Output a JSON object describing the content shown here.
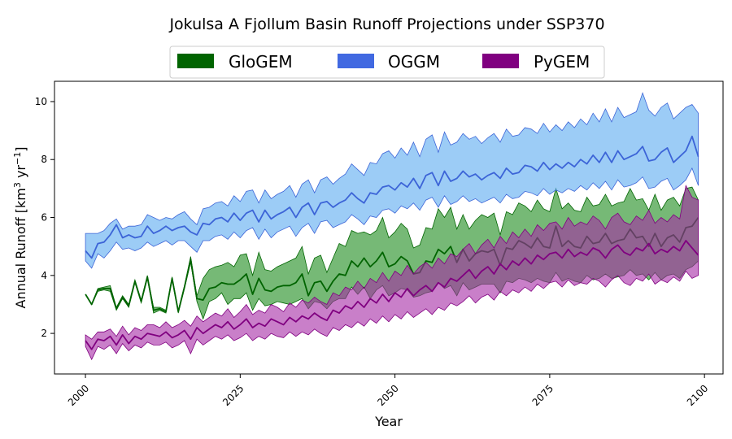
{
  "chart_data": {
    "type": "area",
    "title": "Jokulsa A Fjollum Basin Runoff Projections under SSP370",
    "xlabel": "Year",
    "ylabel_main": "Annual Runoff [km",
    "ylabel_sup1": "3",
    "ylabel_mid": " yr",
    "ylabel_sup2": "−1",
    "ylabel_end": "]",
    "xlim": [
      1995,
      2103
    ],
    "ylim": [
      0.6,
      10.7
    ],
    "xticks": [
      2000,
      2025,
      2050,
      2075,
      2100
    ],
    "yticks": [
      2,
      4,
      6,
      8,
      10
    ],
    "legend_position": "top-center",
    "grid": false,
    "series": [
      {
        "name": "GloGEM",
        "fill_color": "#1b8a1b",
        "line_color": "#006400",
        "legend_color": "#006400",
        "x_start": 2000,
        "mean": [
          3.35,
          3.0,
          3.5,
          3.55,
          3.55,
          2.85,
          3.25,
          2.95,
          3.8,
          3.1,
          3.95,
          2.8,
          2.85,
          2.75,
          3.9,
          2.75,
          3.6,
          4.55,
          3.2,
          3.15,
          3.55,
          3.6,
          3.75,
          3.7,
          3.7,
          3.85,
          4.05,
          3.35,
          3.9,
          3.5,
          3.45,
          3.6,
          3.65,
          3.65,
          3.75,
          4.05,
          3.3,
          3.75,
          3.8,
          3.45,
          3.8,
          4.05,
          4.0,
          4.5,
          4.3,
          4.6,
          4.3,
          4.5,
          4.8,
          4.3,
          4.4,
          4.65,
          4.5,
          4.05,
          4.1,
          4.5,
          4.45,
          4.9,
          4.75,
          5.0,
          4.45,
          4.9,
          4.5,
          4.75,
          4.85,
          4.8,
          4.9,
          4.35,
          4.95,
          4.9,
          5.2,
          5.1,
          4.95,
          5.3,
          5.0,
          4.95,
          5.7,
          5.0,
          5.2,
          5.0,
          4.95,
          5.35,
          5.1,
          5.15,
          5.45,
          5.1,
          5.2,
          5.25,
          5.6,
          5.3,
          5.35,
          5.0,
          5.45,
          5.0,
          5.3,
          5.4,
          5.15,
          5.65,
          5.7,
          6.0
        ],
        "lower": [
          3.35,
          3.0,
          3.45,
          3.5,
          3.45,
          2.8,
          3.2,
          2.9,
          3.75,
          3.05,
          3.9,
          2.7,
          2.8,
          2.7,
          3.85,
          2.7,
          3.55,
          4.45,
          3.1,
          2.5,
          3.1,
          3.2,
          3.4,
          3.0,
          3.2,
          3.2,
          3.4,
          2.8,
          3.2,
          2.95,
          3.0,
          3.1,
          3.05,
          3.0,
          3.1,
          3.2,
          2.85,
          3.1,
          3.05,
          2.85,
          3.1,
          3.2,
          3.2,
          3.6,
          3.35,
          3.6,
          3.2,
          3.5,
          3.65,
          3.3,
          3.4,
          3.55,
          3.5,
          3.25,
          3.3,
          3.4,
          3.45,
          3.75,
          3.55,
          3.65,
          3.3,
          3.75,
          3.5,
          3.6,
          3.7,
          3.7,
          3.7,
          3.4,
          3.8,
          3.75,
          3.9,
          3.85,
          3.75,
          3.9,
          3.8,
          3.75,
          4.1,
          3.8,
          3.9,
          3.8,
          3.75,
          4.0,
          3.85,
          3.9,
          4.05,
          3.9,
          3.95,
          4.0,
          4.2,
          4.0,
          4.05,
          3.85,
          4.1,
          3.85,
          4.0,
          4.05,
          3.9,
          4.2,
          4.3,
          4.5
        ],
        "upper": [
          3.35,
          3.0,
          3.55,
          3.6,
          3.65,
          2.9,
          3.3,
          3.0,
          3.85,
          3.15,
          4.0,
          2.9,
          2.9,
          2.8,
          3.95,
          2.8,
          3.65,
          4.65,
          3.3,
          3.9,
          4.2,
          4.3,
          4.35,
          4.45,
          4.3,
          4.7,
          4.75,
          4.0,
          4.8,
          4.2,
          4.15,
          4.3,
          4.4,
          4.5,
          4.6,
          5.0,
          4.05,
          4.6,
          4.7,
          4.1,
          4.6,
          5.1,
          5.0,
          5.55,
          5.45,
          5.5,
          5.4,
          5.55,
          6.0,
          5.3,
          5.5,
          5.8,
          5.6,
          4.95,
          5.05,
          5.65,
          5.6,
          6.3,
          6.0,
          6.35,
          5.6,
          6.1,
          5.6,
          5.9,
          6.1,
          6.0,
          6.15,
          5.4,
          6.2,
          6.1,
          6.5,
          6.4,
          6.2,
          6.6,
          6.3,
          6.2,
          7.0,
          6.3,
          6.5,
          6.25,
          6.2,
          6.7,
          6.4,
          6.45,
          6.8,
          6.4,
          6.5,
          6.55,
          7.0,
          6.6,
          6.65,
          6.25,
          6.8,
          6.25,
          6.6,
          6.7,
          6.4,
          7.0,
          7.05,
          6.6
        ]
      },
      {
        "name": "OGGM",
        "fill_color": "#5aaaf0",
        "line_color": "#3c64d7",
        "legend_color": "#4169e1",
        "x_start": 2000,
        "mean": [
          4.85,
          4.6,
          5.1,
          5.15,
          5.4,
          5.75,
          5.3,
          5.4,
          5.3,
          5.35,
          5.7,
          5.45,
          5.55,
          5.7,
          5.55,
          5.65,
          5.7,
          5.5,
          5.4,
          5.8,
          5.75,
          5.95,
          6.0,
          5.85,
          6.15,
          5.9,
          6.15,
          6.25,
          5.85,
          6.25,
          5.95,
          6.1,
          6.2,
          6.35,
          6.0,
          6.35,
          6.5,
          6.1,
          6.5,
          6.55,
          6.35,
          6.5,
          6.6,
          6.85,
          6.65,
          6.5,
          6.85,
          6.8,
          7.05,
          7.1,
          6.95,
          7.2,
          7.05,
          7.35,
          7.0,
          7.45,
          7.55,
          7.1,
          7.6,
          7.25,
          7.35,
          7.6,
          7.4,
          7.5,
          7.3,
          7.45,
          7.55,
          7.35,
          7.7,
          7.5,
          7.55,
          7.8,
          7.75,
          7.6,
          7.9,
          7.65,
          7.85,
          7.7,
          7.9,
          7.75,
          8.0,
          7.85,
          8.15,
          7.9,
          8.25,
          7.9,
          8.3,
          8.0,
          8.1,
          8.2,
          8.45,
          7.95,
          8.0,
          8.25,
          8.4,
          7.9,
          8.1,
          8.3,
          8.8,
          8.1
        ],
        "lower": [
          4.5,
          4.25,
          4.75,
          4.6,
          4.85,
          5.15,
          4.9,
          4.95,
          4.85,
          4.95,
          5.15,
          5.0,
          5.1,
          5.2,
          5.05,
          5.2,
          5.2,
          5.0,
          4.8,
          5.2,
          5.2,
          5.35,
          5.4,
          5.25,
          5.5,
          5.3,
          5.55,
          5.65,
          5.25,
          5.6,
          5.3,
          5.5,
          5.6,
          5.7,
          5.35,
          5.65,
          5.8,
          5.45,
          5.85,
          5.9,
          5.65,
          5.75,
          5.85,
          6.1,
          5.95,
          5.75,
          6.05,
          6.0,
          6.25,
          6.3,
          6.15,
          6.4,
          6.3,
          6.5,
          6.25,
          6.6,
          6.7,
          6.35,
          6.75,
          6.45,
          6.55,
          6.75,
          6.55,
          6.65,
          6.5,
          6.6,
          6.7,
          6.5,
          6.8,
          6.65,
          6.7,
          6.9,
          6.85,
          6.75,
          7.0,
          6.8,
          6.95,
          6.85,
          7.0,
          6.9,
          7.1,
          6.95,
          7.2,
          7.0,
          7.25,
          6.95,
          7.3,
          7.05,
          7.1,
          7.2,
          7.4,
          7.0,
          7.05,
          7.25,
          7.35,
          6.95,
          7.1,
          7.3,
          7.7,
          7.1
        ],
        "upper": [
          5.45,
          5.45,
          5.45,
          5.55,
          5.8,
          5.95,
          5.6,
          5.7,
          5.7,
          5.75,
          6.1,
          6.0,
          5.9,
          6.0,
          5.95,
          6.1,
          6.2,
          5.95,
          5.75,
          6.3,
          6.35,
          6.5,
          6.55,
          6.4,
          6.75,
          6.55,
          6.9,
          6.95,
          6.5,
          6.95,
          6.65,
          6.8,
          6.9,
          7.1,
          6.7,
          7.15,
          7.3,
          6.85,
          7.3,
          7.4,
          7.15,
          7.35,
          7.5,
          7.85,
          7.65,
          7.45,
          7.9,
          7.85,
          8.2,
          8.3,
          8.05,
          8.4,
          8.15,
          8.6,
          8.1,
          8.7,
          8.85,
          8.25,
          8.95,
          8.5,
          8.6,
          8.9,
          8.7,
          8.8,
          8.55,
          8.75,
          8.9,
          8.6,
          9.05,
          8.8,
          8.85,
          9.1,
          9.05,
          8.9,
          9.25,
          8.95,
          9.2,
          9.0,
          9.3,
          9.1,
          9.4,
          9.2,
          9.6,
          9.3,
          9.75,
          9.3,
          9.8,
          9.45,
          9.55,
          9.65,
          10.3,
          9.7,
          9.5,
          9.8,
          9.95,
          9.4,
          9.6,
          9.8,
          9.9,
          9.6
        ]
      },
      {
        "name": "PyGEM",
        "fill_color": "#a52aa5",
        "line_color": "#800080",
        "legend_color": "#800080",
        "x_start": 2000,
        "mean": [
          1.75,
          1.45,
          1.8,
          1.75,
          1.9,
          1.6,
          1.95,
          1.65,
          1.9,
          1.8,
          2.0,
          1.95,
          1.9,
          2.05,
          1.85,
          1.95,
          2.1,
          1.8,
          2.2,
          2.0,
          2.15,
          2.3,
          2.2,
          2.4,
          2.15,
          2.3,
          2.5,
          2.2,
          2.35,
          2.25,
          2.5,
          2.4,
          2.3,
          2.55,
          2.4,
          2.6,
          2.5,
          2.7,
          2.55,
          2.45,
          2.8,
          2.7,
          2.95,
          2.85,
          3.1,
          2.9,
          3.2,
          3.05,
          3.35,
          3.1,
          3.4,
          3.25,
          3.55,
          3.3,
          3.5,
          3.65,
          3.45,
          3.75,
          3.6,
          3.9,
          3.8,
          4.0,
          4.2,
          3.9,
          4.15,
          4.3,
          4.05,
          4.4,
          4.2,
          4.5,
          4.35,
          4.6,
          4.4,
          4.7,
          4.55,
          4.75,
          4.8,
          4.6,
          4.9,
          4.65,
          4.8,
          4.7,
          4.95,
          4.85,
          4.6,
          4.9,
          5.05,
          4.8,
          4.7,
          4.95,
          4.85,
          5.1,
          4.75,
          4.9,
          4.8,
          5.0,
          4.85,
          5.2,
          4.95,
          4.7
        ],
        "lower": [
          1.55,
          1.1,
          1.55,
          1.45,
          1.6,
          1.3,
          1.65,
          1.4,
          1.6,
          1.5,
          1.7,
          1.6,
          1.6,
          1.7,
          1.5,
          1.6,
          1.75,
          1.3,
          1.8,
          1.6,
          1.75,
          1.9,
          1.8,
          1.95,
          1.75,
          1.85,
          2.0,
          1.75,
          1.9,
          1.8,
          2.0,
          1.9,
          1.85,
          2.05,
          1.9,
          2.05,
          1.95,
          2.15,
          2.0,
          1.9,
          2.2,
          2.1,
          2.3,
          2.2,
          2.4,
          2.25,
          2.5,
          2.35,
          2.6,
          2.4,
          2.65,
          2.5,
          2.75,
          2.55,
          2.7,
          2.85,
          2.65,
          2.9,
          2.8,
          3.05,
          2.95,
          3.1,
          3.3,
          3.05,
          3.25,
          3.35,
          3.15,
          3.45,
          3.3,
          3.5,
          3.4,
          3.6,
          3.45,
          3.7,
          3.55,
          3.75,
          3.8,
          3.6,
          3.85,
          3.65,
          3.75,
          3.7,
          3.9,
          3.8,
          3.6,
          3.85,
          4.0,
          3.75,
          3.65,
          3.9,
          3.8,
          4.05,
          3.7,
          3.85,
          3.75,
          3.95,
          3.8,
          4.15,
          3.9,
          4.0
        ],
        "upper": [
          1.95,
          1.8,
          2.05,
          2.05,
          2.15,
          1.9,
          2.25,
          1.95,
          2.2,
          2.1,
          2.3,
          2.3,
          2.2,
          2.4,
          2.2,
          2.3,
          2.45,
          2.25,
          2.6,
          2.4,
          2.55,
          2.7,
          2.6,
          2.85,
          2.55,
          2.75,
          3.0,
          2.65,
          2.8,
          2.7,
          3.0,
          2.9,
          2.75,
          3.05,
          2.9,
          3.15,
          3.05,
          3.25,
          3.1,
          3.0,
          3.4,
          3.3,
          3.6,
          3.5,
          3.8,
          3.55,
          3.9,
          3.75,
          4.1,
          3.8,
          4.15,
          4.0,
          4.35,
          4.05,
          4.3,
          4.45,
          4.25,
          4.6,
          4.4,
          4.75,
          4.65,
          4.9,
          5.1,
          4.75,
          5.05,
          5.25,
          4.95,
          5.35,
          5.1,
          5.5,
          5.3,
          5.6,
          5.35,
          5.75,
          5.55,
          5.8,
          5.85,
          5.6,
          6.0,
          5.7,
          5.85,
          5.75,
          6.05,
          5.9,
          5.6,
          6.0,
          6.15,
          5.85,
          5.75,
          6.05,
          5.9,
          6.25,
          5.8,
          6.0,
          5.85,
          6.1,
          5.95,
          7.1,
          6.7,
          6.6
        ]
      }
    ]
  }
}
